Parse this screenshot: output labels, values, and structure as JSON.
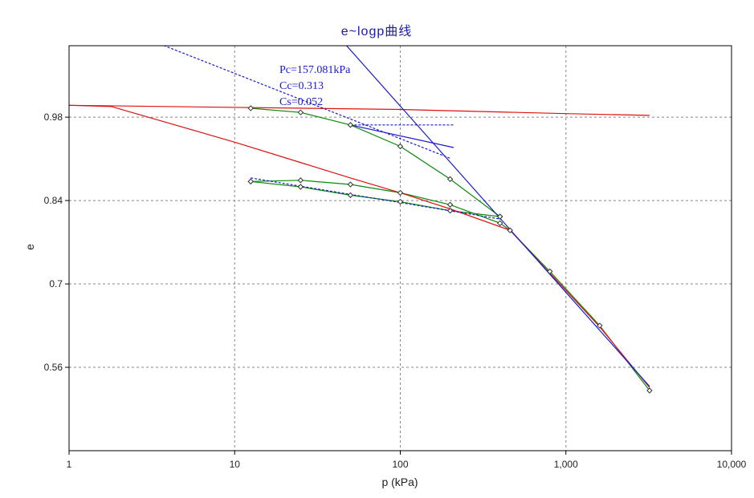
{
  "chart_data": {
    "type": "line",
    "title": "e~logp曲线",
    "xlabel": "p (kPa)",
    "ylabel": "e",
    "x_scale": "log",
    "xlim": [
      1,
      10000
    ],
    "ylim": [
      0.42,
      1.1
    ],
    "x_tick_labels": [
      "1",
      "10",
      "100",
      "1,000",
      "10,000"
    ],
    "x_ticks": [
      1,
      10,
      100,
      1000,
      10000
    ],
    "y_tick_labels": [
      "0.98",
      "0.84",
      "0.7",
      "0.56"
    ],
    "y_ticks": [
      0.98,
      0.84,
      0.7,
      0.56
    ],
    "grid": true,
    "annotations": [
      "Pc=157.081kPa",
      "Cc=0.313",
      "Cs=0.052"
    ],
    "colors": {
      "measured": "#0a8a0a",
      "corrected": "#dd1111",
      "construction": "#1a1acc",
      "title": "#1a1aa6"
    },
    "series": [
      {
        "role": "loading",
        "color": "#0a8a0a",
        "marker": "diamond",
        "points": [
          [
            12.5,
            0.995
          ],
          [
            25,
            0.988
          ],
          [
            50,
            0.967
          ],
          [
            100,
            0.931
          ],
          [
            200,
            0.876
          ],
          [
            400,
            0.813
          ]
        ]
      },
      {
        "role": "unloading",
        "color": "#0a8a0a",
        "marker": "diamond",
        "points": [
          [
            400,
            0.813
          ],
          [
            200,
            0.823
          ],
          [
            100,
            0.838
          ],
          [
            50,
            0.849
          ],
          [
            25,
            0.863
          ],
          [
            12.5,
            0.872
          ]
        ]
      },
      {
        "role": "reloading",
        "color": "#0a8a0a",
        "marker": "diamond",
        "points": [
          [
            12.5,
            0.872
          ],
          [
            25,
            0.874
          ],
          [
            50,
            0.867
          ],
          [
            100,
            0.853
          ],
          [
            200,
            0.833
          ],
          [
            400,
            0.802
          ],
          [
            460,
            0.79
          ],
          [
            800,
            0.721
          ],
          [
            1600,
            0.63
          ],
          [
            3200,
            0.521
          ]
        ]
      },
      {
        "role": "corrected-virgin",
        "color": "#dd1111",
        "points": [
          [
            1,
            1.0
          ],
          [
            1.8,
            0.998
          ],
          [
            10,
            0.938
          ],
          [
            50,
            0.878
          ],
          [
            100,
            0.853
          ],
          [
            200,
            0.826
          ],
          [
            460,
            0.79
          ],
          [
            800,
            0.718
          ],
          [
            1600,
            0.628
          ],
          [
            3200,
            0.526
          ]
        ]
      },
      {
        "role": "horizontal-e0",
        "color": "#dd1111",
        "points": [
          [
            1,
            1.0
          ],
          [
            100,
            0.993
          ],
          [
            1000,
            0.986
          ],
          [
            3200,
            0.983
          ]
        ]
      },
      {
        "role": "compression-line",
        "color": "#1a1acc",
        "points": [
          [
            38,
            1.13
          ],
          [
            3200,
            0.528
          ]
        ]
      },
      {
        "role": "tangent",
        "color": "#1a1acc",
        "points": [
          [
            50,
            0.967
          ],
          [
            210,
            0.929
          ]
        ]
      },
      {
        "role": "bisector",
        "color": "#1a1acc",
        "dashed": true,
        "points": [
          [
            2,
            1.13
          ],
          [
            200,
            0.911
          ]
        ]
      },
      {
        "role": "horizontal-tangent",
        "color": "#1a1acc",
        "dashed": true,
        "points": [
          [
            50,
            0.967
          ],
          [
            210,
            0.967
          ]
        ]
      },
      {
        "role": "unload-reload-mean",
        "color": "#1a1acc",
        "dashed": true,
        "points": [
          [
            12.5,
            0.878
          ],
          [
            400,
            0.809
          ]
        ]
      }
    ]
  }
}
